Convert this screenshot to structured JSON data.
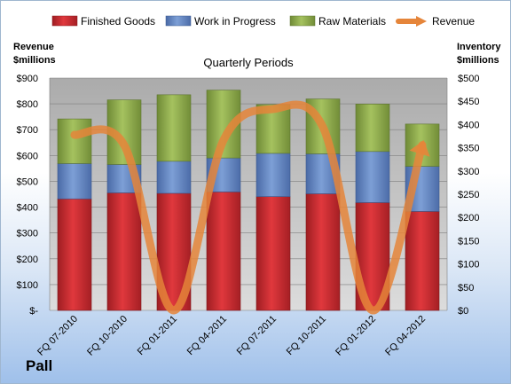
{
  "company": "Pall",
  "chart_data": {
    "type": "bar",
    "stacked": true,
    "title": "Quarterly Periods",
    "left_axis": {
      "label_line1": "Revenue",
      "label_line2": "$millions",
      "ylim": [
        0,
        900
      ],
      "ticks": [
        "$-",
        "$100",
        "$200",
        "$300",
        "$400",
        "$500",
        "$600",
        "$700",
        "$800",
        "$900"
      ]
    },
    "right_axis": {
      "label_line1": "Inventory",
      "label_line2": "$millions",
      "ylim": [
        0,
        500
      ],
      "ticks": [
        "$0",
        "$50",
        "$100",
        "$150",
        "$200",
        "$250",
        "$300",
        "$350",
        "$400",
        "$450",
        "$500"
      ]
    },
    "categories": [
      "FQ 07-2010",
      "FQ 10-2010",
      "FQ 01-2011",
      "FQ 04-2011",
      "FQ 07-2011",
      "FQ 10-2011",
      "FQ 01-2012",
      "FQ 04-2012"
    ],
    "series": [
      {
        "name": "Finished Goods",
        "axis": "right",
        "color": "#c0292e",
        "values": [
          240,
          253,
          252,
          255,
          245,
          251,
          232,
          213
        ]
      },
      {
        "name": "Work in Progress",
        "axis": "right",
        "color": "#5b7fbd",
        "values": [
          76,
          61,
          69,
          73,
          93,
          86,
          110,
          97
        ]
      },
      {
        "name": "Raw Materials",
        "axis": "right",
        "color": "#8aa84a",
        "values": [
          96,
          139,
          143,
          146,
          105,
          118,
          102,
          91
        ]
      },
      {
        "name": "Revenue",
        "axis": "left",
        "color": "#e5853a",
        "type": "line",
        "smooth": true,
        "values": [
          680,
          640,
          0,
          660,
          780,
          710,
          0,
          640
        ]
      }
    ],
    "grid": true,
    "legend": "top"
  }
}
